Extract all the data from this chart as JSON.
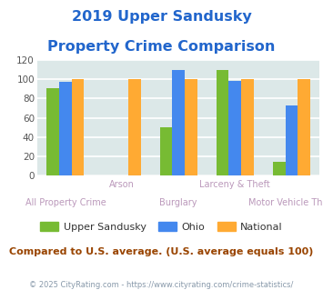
{
  "title_line1": "2019 Upper Sandusky",
  "title_line2": "Property Crime Comparison",
  "title_color": "#2266cc",
  "categories": [
    "All Property Crime",
    "Arson",
    "Burglary",
    "Larceny & Theft",
    "Motor Vehicle Theft"
  ],
  "series": {
    "Upper Sandusky": [
      91,
      0,
      50,
      110,
      14
    ],
    "Ohio": [
      97,
      0,
      110,
      98,
      73
    ],
    "National": [
      100,
      100,
      100,
      100,
      100
    ]
  },
  "colors": {
    "Upper Sandusky": "#77bb33",
    "Ohio": "#4488ee",
    "National": "#ffaa33"
  },
  "ylim": [
    0,
    120
  ],
  "yticks": [
    0,
    20,
    40,
    60,
    80,
    100,
    120
  ],
  "background_color": "#dce8e8",
  "grid_color": "#ffffff",
  "footnote": "Compared to U.S. average. (U.S. average equals 100)",
  "footnote_color": "#994400",
  "copyright": "© 2025 CityRating.com - https://www.cityrating.com/crime-statistics/",
  "copyright_color": "#8899aa",
  "bar_width": 0.22,
  "xlabel_top": [
    "",
    "Arson",
    "",
    "Larceny & Theft",
    ""
  ],
  "xlabel_bottom": [
    "All Property Crime",
    "",
    "Burglary",
    "",
    "Motor Vehicle Theft"
  ],
  "xlabel_color": "#bb99bb",
  "legend_text_color": "#333333"
}
